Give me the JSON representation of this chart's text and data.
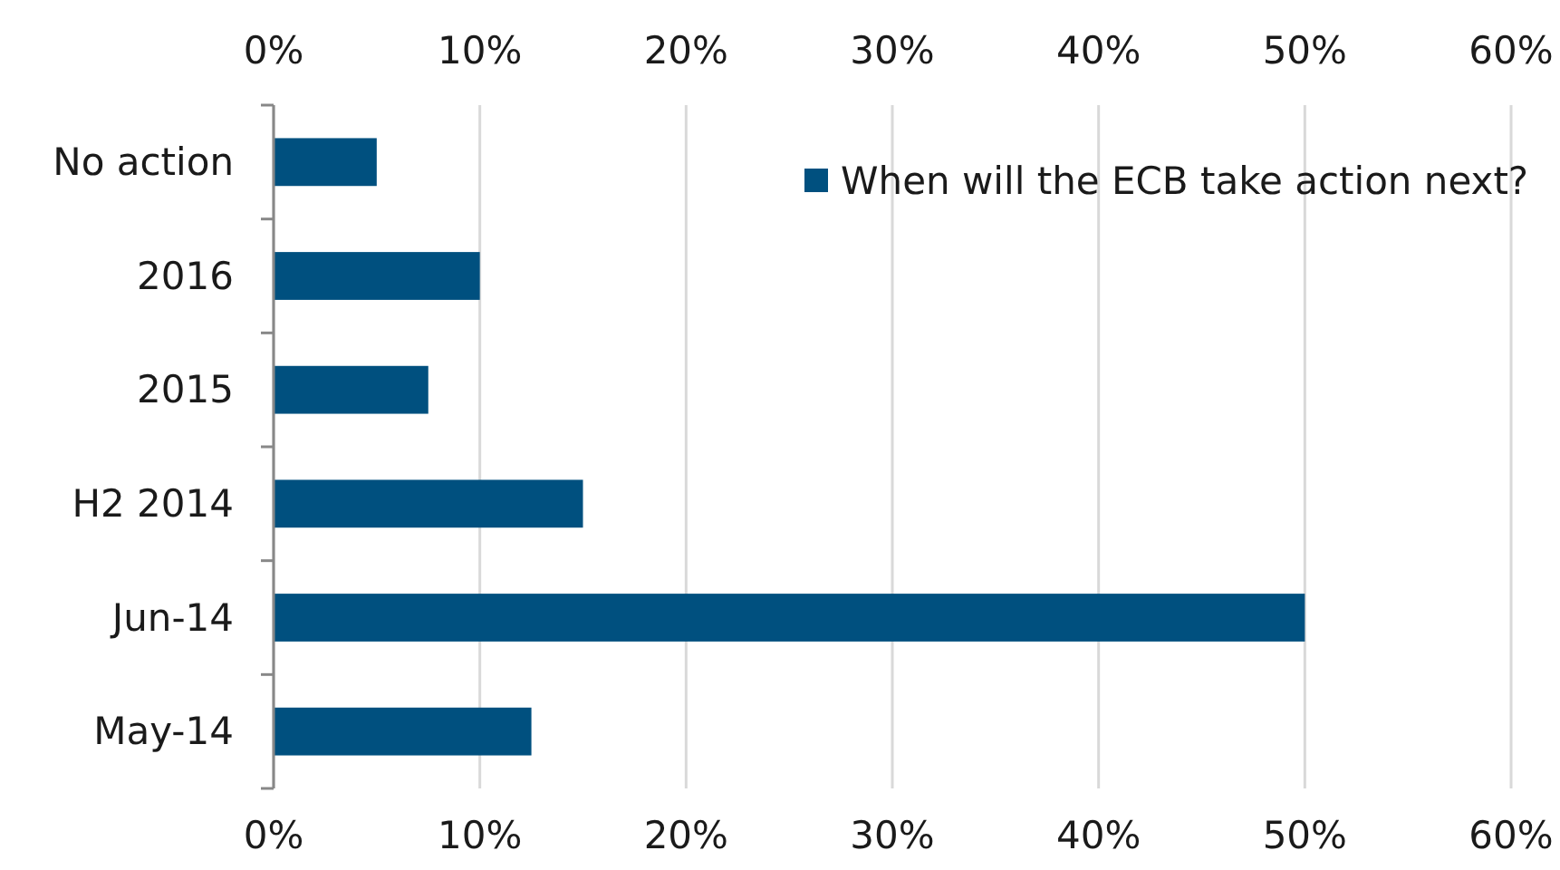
{
  "chart_data": {
    "type": "bar",
    "orientation": "horizontal",
    "categories": [
      "No action",
      "2016",
      "2015",
      "H2 2014",
      "Jun-14",
      "May-14"
    ],
    "series": [
      {
        "name": "When will the ECB take action next?",
        "color": "#00507f",
        "values": [
          5,
          10,
          7.5,
          15,
          50,
          12.5
        ]
      }
    ],
    "xlim": [
      0,
      60
    ],
    "xticks": [
      {
        "value": 0,
        "label": "0%"
      },
      {
        "value": 10,
        "label": "10%"
      },
      {
        "value": 20,
        "label": "20%"
      },
      {
        "value": 30,
        "label": "30%"
      },
      {
        "value": 40,
        "label": "40%"
      },
      {
        "value": 50,
        "label": "50%"
      },
      {
        "value": 60,
        "label": "60%"
      }
    ],
    "x2lim": [
      0,
      60
    ],
    "x2ticks": [
      {
        "value": 0,
        "label": "0%"
      },
      {
        "value": 10,
        "label": "10%"
      },
      {
        "value": 20,
        "label": "20%"
      },
      {
        "value": 30,
        "label": "30%"
      },
      {
        "value": 40,
        "label": "40%"
      },
      {
        "value": 50,
        "label": "50%"
      },
      {
        "value": 60,
        "label": "60%"
      }
    ],
    "grid": "x",
    "legend": "top right"
  }
}
